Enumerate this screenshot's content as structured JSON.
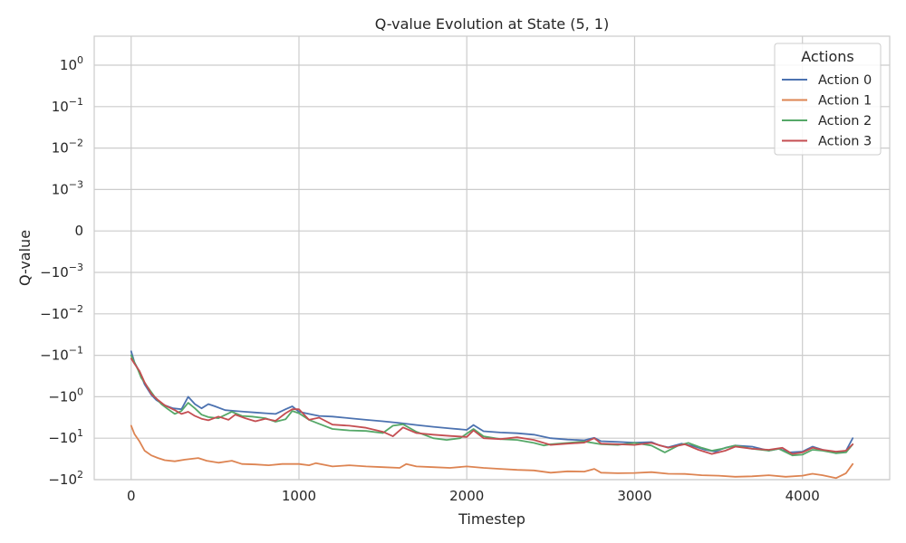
{
  "chart_data": {
    "type": "line",
    "title": "Q-value Evolution at State (5, 1)",
    "xlabel": "Timestep",
    "ylabel": "Q-value",
    "yscale": "symlog",
    "xlim": [
      -220,
      4520
    ],
    "ylim": [
      -100,
      5
    ],
    "x_ticks": [
      0,
      1000,
      2000,
      3000,
      4000
    ],
    "x_tick_labels": [
      "0",
      "1000",
      "2000",
      "3000",
      "4000"
    ],
    "y_ticks": [
      {
        "value": 1,
        "base": "10",
        "exp": "0"
      },
      {
        "value": 0.1,
        "base": "10",
        "exp": "−1"
      },
      {
        "value": 0.01,
        "base": "10",
        "exp": "−2"
      },
      {
        "value": 0.001,
        "base": "10",
        "exp": "−3"
      },
      {
        "value": 0,
        "base": "0",
        "exp": ""
      },
      {
        "value": -0.001,
        "base": "−10",
        "exp": "−3"
      },
      {
        "value": -0.01,
        "base": "−10",
        "exp": "−2"
      },
      {
        "value": -0.1,
        "base": "−10",
        "exp": "−1"
      },
      {
        "value": -1,
        "base": "−10",
        "exp": "0"
      },
      {
        "value": -10,
        "base": "−10",
        "exp": "1"
      },
      {
        "value": -100,
        "base": "−10",
        "exp": "2"
      }
    ],
    "grid": true,
    "legend": {
      "title": "Actions",
      "position": "top-right"
    },
    "series": [
      {
        "name": "Action 0",
        "color": "#4c72b0",
        "points": [
          [
            0,
            -0.08
          ],
          [
            20,
            -0.15
          ],
          [
            50,
            -0.25
          ],
          [
            80,
            -0.5
          ],
          [
            120,
            -0.9
          ],
          [
            150,
            -1.2
          ],
          [
            200,
            -1.6
          ],
          [
            250,
            -1.9
          ],
          [
            300,
            -2.0
          ],
          [
            340,
            -1.0
          ],
          [
            380,
            -1.5
          ],
          [
            420,
            -1.9
          ],
          [
            460,
            -1.5
          ],
          [
            500,
            -1.7
          ],
          [
            560,
            -2.1
          ],
          [
            620,
            -2.2
          ],
          [
            680,
            -2.3
          ],
          [
            740,
            -2.4
          ],
          [
            800,
            -2.5
          ],
          [
            860,
            -2.6
          ],
          [
            920,
            -2.0
          ],
          [
            960,
            -1.7
          ],
          [
            1000,
            -2.3
          ],
          [
            1060,
            -2.6
          ],
          [
            1120,
            -2.9
          ],
          [
            1200,
            -3.0
          ],
          [
            1300,
            -3.3
          ],
          [
            1400,
            -3.6
          ],
          [
            1500,
            -3.9
          ],
          [
            1600,
            -4.3
          ],
          [
            1700,
            -4.8
          ],
          [
            1800,
            -5.3
          ],
          [
            1900,
            -5.8
          ],
          [
            2000,
            -6.3
          ],
          [
            2040,
            -4.8
          ],
          [
            2100,
            -6.8
          ],
          [
            2200,
            -7.3
          ],
          [
            2300,
            -7.6
          ],
          [
            2400,
            -8.2
          ],
          [
            2500,
            -10.0
          ],
          [
            2600,
            -10.8
          ],
          [
            2700,
            -11.2
          ],
          [
            2760,
            -9.8
          ],
          [
            2800,
            -11.8
          ],
          [
            2900,
            -12.3
          ],
          [
            3000,
            -12.8
          ],
          [
            3100,
            -12.4
          ],
          [
            3150,
            -15.0
          ],
          [
            3200,
            -16.5
          ],
          [
            3280,
            -13.5
          ],
          [
            3350,
            -15.5
          ],
          [
            3420,
            -19.0
          ],
          [
            3480,
            -21.0
          ],
          [
            3540,
            -17.0
          ],
          [
            3600,
            -15.0
          ],
          [
            3700,
            -16.0
          ],
          [
            3800,
            -20.0
          ],
          [
            3860,
            -18.0
          ],
          [
            3920,
            -22.0
          ],
          [
            4000,
            -21.0
          ],
          [
            4060,
            -16.0
          ],
          [
            4120,
            -19.0
          ],
          [
            4200,
            -23.0
          ],
          [
            4260,
            -20.0
          ],
          [
            4300,
            -10.0
          ]
        ]
      },
      {
        "name": "Action 1",
        "color": "#dd8452",
        "points": [
          [
            0,
            -5.0
          ],
          [
            20,
            -8.0
          ],
          [
            50,
            -12.0
          ],
          [
            80,
            -20.0
          ],
          [
            120,
            -26.0
          ],
          [
            160,
            -30.0
          ],
          [
            200,
            -34.0
          ],
          [
            260,
            -36.0
          ],
          [
            320,
            -33.0
          ],
          [
            400,
            -30.0
          ],
          [
            450,
            -35.0
          ],
          [
            520,
            -39.0
          ],
          [
            600,
            -35.0
          ],
          [
            660,
            -42.0
          ],
          [
            740,
            -43.0
          ],
          [
            820,
            -45.0
          ],
          [
            900,
            -42.0
          ],
          [
            1000,
            -42.0
          ],
          [
            1060,
            -45.0
          ],
          [
            1100,
            -40.0
          ],
          [
            1200,
            -48.0
          ],
          [
            1300,
            -45.0
          ],
          [
            1400,
            -48.0
          ],
          [
            1500,
            -50.0
          ],
          [
            1600,
            -52.0
          ],
          [
            1640,
            -42.0
          ],
          [
            1700,
            -48.0
          ],
          [
            1800,
            -50.0
          ],
          [
            1900,
            -52.0
          ],
          [
            2000,
            -48.0
          ],
          [
            2100,
            -52.0
          ],
          [
            2200,
            -55.0
          ],
          [
            2300,
            -58.0
          ],
          [
            2400,
            -60.0
          ],
          [
            2500,
            -68.0
          ],
          [
            2600,
            -63.0
          ],
          [
            2700,
            -64.0
          ],
          [
            2760,
            -55.0
          ],
          [
            2800,
            -68.0
          ],
          [
            2900,
            -70.0
          ],
          [
            3000,
            -69.0
          ],
          [
            3100,
            -66.0
          ],
          [
            3200,
            -72.0
          ],
          [
            3300,
            -73.0
          ],
          [
            3400,
            -78.0
          ],
          [
            3500,
            -80.0
          ],
          [
            3600,
            -85.0
          ],
          [
            3700,
            -83.0
          ],
          [
            3800,
            -78.0
          ],
          [
            3900,
            -85.0
          ],
          [
            4000,
            -80.0
          ],
          [
            4060,
            -72.0
          ],
          [
            4120,
            -78.0
          ],
          [
            4200,
            -92.0
          ],
          [
            4260,
            -70.0
          ],
          [
            4300,
            -42.0
          ]
        ]
      },
      {
        "name": "Action 2",
        "color": "#55a868",
        "points": [
          [
            0,
            -0.1
          ],
          [
            20,
            -0.15
          ],
          [
            40,
            -0.22
          ],
          [
            60,
            -0.35
          ],
          [
            100,
            -0.6
          ],
          [
            140,
            -1.0
          ],
          [
            180,
            -1.5
          ],
          [
            220,
            -2.0
          ],
          [
            260,
            -2.6
          ],
          [
            300,
            -2.2
          ],
          [
            340,
            -1.4
          ],
          [
            380,
            -1.9
          ],
          [
            420,
            -2.7
          ],
          [
            460,
            -3.1
          ],
          [
            520,
            -3.3
          ],
          [
            600,
            -2.3
          ],
          [
            660,
            -2.9
          ],
          [
            720,
            -3.0
          ],
          [
            800,
            -3.3
          ],
          [
            860,
            -4.0
          ],
          [
            920,
            -3.5
          ],
          [
            960,
            -2.2
          ],
          [
            1000,
            -2.5
          ],
          [
            1060,
            -3.6
          ],
          [
            1120,
            -4.5
          ],
          [
            1200,
            -6.0
          ],
          [
            1300,
            -6.5
          ],
          [
            1400,
            -6.7
          ],
          [
            1500,
            -7.5
          ],
          [
            1560,
            -5.0
          ],
          [
            1620,
            -4.6
          ],
          [
            1700,
            -7.0
          ],
          [
            1800,
            -10.0
          ],
          [
            1880,
            -11.0
          ],
          [
            1960,
            -10.0
          ],
          [
            2040,
            -6.0
          ],
          [
            2100,
            -9.0
          ],
          [
            2200,
            -10.5
          ],
          [
            2300,
            -11.0
          ],
          [
            2400,
            -13.0
          ],
          [
            2460,
            -15.0
          ],
          [
            2500,
            -14.0
          ],
          [
            2600,
            -13.0
          ],
          [
            2700,
            -12.0
          ],
          [
            2800,
            -14.0
          ],
          [
            2900,
            -14.5
          ],
          [
            3000,
            -13.0
          ],
          [
            3100,
            -15.0
          ],
          [
            3180,
            -22.0
          ],
          [
            3260,
            -15.0
          ],
          [
            3320,
            -13.0
          ],
          [
            3400,
            -17.0
          ],
          [
            3460,
            -20.0
          ],
          [
            3520,
            -18.0
          ],
          [
            3600,
            -15.0
          ],
          [
            3700,
            -18.0
          ],
          [
            3800,
            -20.0
          ],
          [
            3860,
            -18.0
          ],
          [
            3940,
            -26.0
          ],
          [
            4000,
            -25.0
          ],
          [
            4060,
            -19.0
          ],
          [
            4120,
            -20.0
          ],
          [
            4200,
            -23.0
          ],
          [
            4260,
            -22.0
          ],
          [
            4300,
            -14.0
          ]
        ]
      },
      {
        "name": "Action 3",
        "color": "#c44e52",
        "points": [
          [
            0,
            -0.12
          ],
          [
            20,
            -0.16
          ],
          [
            50,
            -0.24
          ],
          [
            80,
            -0.45
          ],
          [
            120,
            -0.85
          ],
          [
            160,
            -1.2
          ],
          [
            200,
            -1.6
          ],
          [
            260,
            -2.1
          ],
          [
            300,
            -2.6
          ],
          [
            340,
            -2.3
          ],
          [
            380,
            -2.9
          ],
          [
            420,
            -3.4
          ],
          [
            460,
            -3.7
          ],
          [
            520,
            -3.0
          ],
          [
            580,
            -3.6
          ],
          [
            620,
            -2.7
          ],
          [
            680,
            -3.3
          ],
          [
            740,
            -3.9
          ],
          [
            800,
            -3.4
          ],
          [
            860,
            -3.8
          ],
          [
            920,
            -2.5
          ],
          [
            960,
            -2.0
          ],
          [
            1000,
            -2.0
          ],
          [
            1060,
            -3.6
          ],
          [
            1120,
            -3.2
          ],
          [
            1200,
            -4.7
          ],
          [
            1300,
            -5.0
          ],
          [
            1400,
            -5.6
          ],
          [
            1500,
            -7.0
          ],
          [
            1560,
            -9.0
          ],
          [
            1620,
            -5.5
          ],
          [
            1700,
            -7.5
          ],
          [
            1800,
            -8.2
          ],
          [
            1900,
            -8.8
          ],
          [
            2000,
            -9.3
          ],
          [
            2040,
            -6.5
          ],
          [
            2100,
            -10.0
          ],
          [
            2200,
            -10.5
          ],
          [
            2300,
            -9.5
          ],
          [
            2400,
            -11.0
          ],
          [
            2500,
            -14.5
          ],
          [
            2600,
            -13.5
          ],
          [
            2700,
            -12.8
          ],
          [
            2760,
            -10.0
          ],
          [
            2800,
            -13.5
          ],
          [
            2900,
            -14.0
          ],
          [
            3000,
            -14.5
          ],
          [
            3100,
            -13.0
          ],
          [
            3200,
            -17.0
          ],
          [
            3300,
            -14.0
          ],
          [
            3380,
            -19.0
          ],
          [
            3460,
            -24.0
          ],
          [
            3540,
            -20.0
          ],
          [
            3600,
            -16.0
          ],
          [
            3700,
            -18.0
          ],
          [
            3800,
            -19.0
          ],
          [
            3880,
            -17.0
          ],
          [
            3940,
            -24.0
          ],
          [
            4000,
            -22.0
          ],
          [
            4060,
            -17.0
          ],
          [
            4120,
            -19.0
          ],
          [
            4200,
            -21.0
          ],
          [
            4260,
            -20.0
          ],
          [
            4300,
            -14.0
          ]
        ]
      }
    ]
  }
}
